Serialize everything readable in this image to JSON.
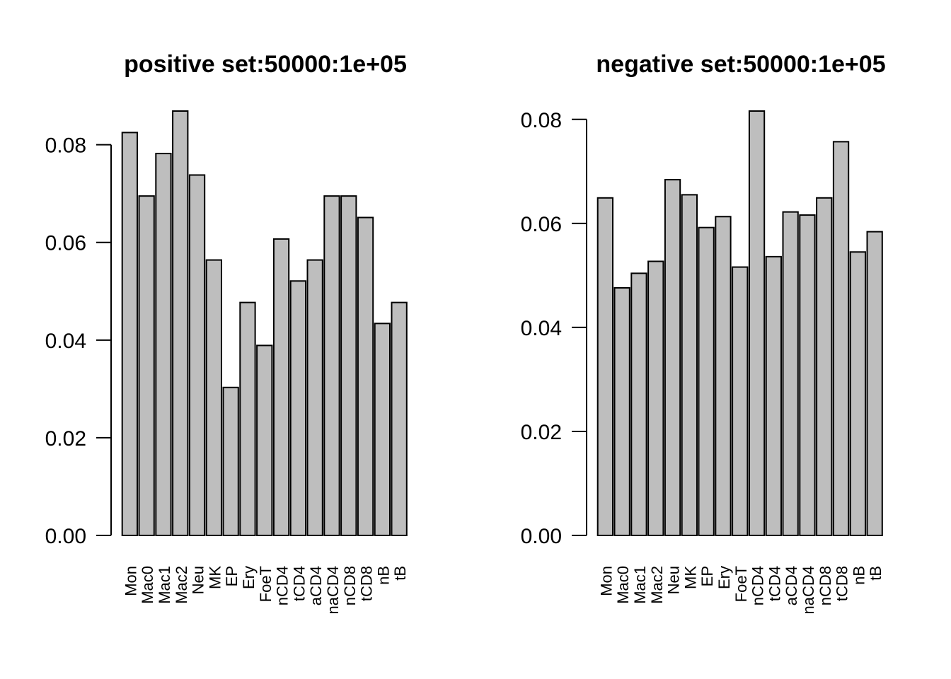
{
  "chart_data": [
    {
      "type": "bar",
      "title": "positive set:50000:1e+05",
      "categories": [
        "Mon",
        "Mac0",
        "Mac1",
        "Mac2",
        "Neu",
        "MK",
        "EP",
        "Ery",
        "FoeT",
        "nCD4",
        "tCD4",
        "aCD4",
        "naCD4",
        "nCD8",
        "tCD8",
        "nB",
        "tB"
      ],
      "values": [
        0.0825,
        0.0695,
        0.0782,
        0.0869,
        0.0738,
        0.0564,
        0.0303,
        0.0477,
        0.0389,
        0.0607,
        0.0521,
        0.0564,
        0.0695,
        0.0695,
        0.0651,
        0.0434,
        0.0477
      ],
      "xlabel": "",
      "ylabel": "",
      "ylim": [
        0,
        0.0869
      ],
      "y_ticks": [
        0,
        0.02,
        0.04,
        0.06,
        0.08
      ],
      "y_tick_labels": [
        "0.00",
        "0.02",
        "0.04",
        "0.06",
        "0.08"
      ],
      "grid": false,
      "legend_position": "none",
      "bar_fill": "#bebebe",
      "bar_stroke": "#000000",
      "text_color": "#000000"
    },
    {
      "type": "bar",
      "title": "negative set:50000:1e+05",
      "categories": [
        "Mon",
        "Mac0",
        "Mac1",
        "Mac2",
        "Neu",
        "MK",
        "EP",
        "Ery",
        "FoeT",
        "nCD4",
        "tCD4",
        "aCD4",
        "naCD4",
        "nCD8",
        "tCD8",
        "nB",
        "tB"
      ],
      "values": [
        0.0649,
        0.0476,
        0.0504,
        0.0527,
        0.0684,
        0.0655,
        0.0592,
        0.0613,
        0.0516,
        0.0816,
        0.0536,
        0.0622,
        0.0616,
        0.0649,
        0.0757,
        0.0545,
        0.0584
      ],
      "xlabel": "",
      "ylabel": "",
      "ylim": [
        0,
        0.0816
      ],
      "y_ticks": [
        0,
        0.02,
        0.04,
        0.06,
        0.08
      ],
      "y_tick_labels": [
        "0.00",
        "0.02",
        "0.04",
        "0.06",
        "0.08"
      ],
      "grid": false,
      "legend_position": "none",
      "bar_fill": "#bebebe",
      "bar_stroke": "#000000",
      "text_color": "#000000"
    }
  ]
}
